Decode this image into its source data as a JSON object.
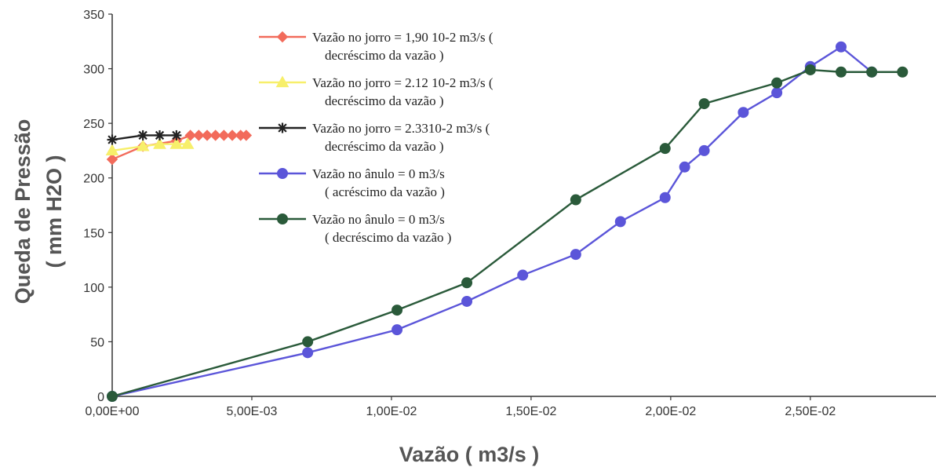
{
  "chart_data": {
    "type": "line",
    "title": "",
    "xlabel": "Vazão ( m3/s )",
    "ylabel": [
      "Queda de Pressão",
      "( mm H2O )"
    ],
    "xlim": [
      0,
      0.0295
    ],
    "ylim": [
      0,
      350
    ],
    "x_ticks": [
      {
        "value": 0,
        "label": "0,00E+00"
      },
      {
        "value": 0.005,
        "label": "5,00E-03"
      },
      {
        "value": 0.01,
        "label": "1,00E-02"
      },
      {
        "value": 0.015,
        "label": "1,50E-02"
      },
      {
        "value": 0.02,
        "label": "2,00E-02"
      },
      {
        "value": 0.025,
        "label": "2,50E-02"
      }
    ],
    "y_ticks": [
      {
        "value": 0,
        "label": "0"
      },
      {
        "value": 50,
        "label": "50"
      },
      {
        "value": 100,
        "label": "100"
      },
      {
        "value": 150,
        "label": "150"
      },
      {
        "value": 200,
        "label": "200"
      },
      {
        "value": 250,
        "label": "250"
      },
      {
        "value": 300,
        "label": "300"
      },
      {
        "value": 350,
        "label": "350"
      }
    ],
    "grid": false,
    "legend_position": "top-center",
    "series": [
      {
        "name": [
          "Vazão no jorro = 1,90 10-2 m3/s (",
          "decréscimo da vazão )"
        ],
        "color": "#f26b5b",
        "marker": "diamond",
        "points": [
          [
            0,
            217
          ],
          [
            0.0011,
            229
          ],
          [
            0.0023,
            234
          ],
          [
            0.0028,
            239
          ],
          [
            0.0031,
            239
          ],
          [
            0.0034,
            239
          ],
          [
            0.0037,
            239
          ],
          [
            0.004,
            239
          ],
          [
            0.0043,
            239
          ],
          [
            0.0046,
            239
          ],
          [
            0.0048,
            239
          ]
        ]
      },
      {
        "name": [
          "Vazão no jorro = 2.12 10-2 m3/s (",
          "decréscimo da vazão )"
        ],
        "color": "#f7ef6a",
        "marker": "triangle",
        "points": [
          [
            0,
            225
          ],
          [
            0.0011,
            229
          ],
          [
            0.0017,
            231
          ],
          [
            0.0023,
            231
          ],
          [
            0.0027,
            231
          ]
        ]
      },
      {
        "name": [
          "Vazão no jorro = 2.3310-2 m3/s (",
          "decréscimo da vazão )"
        ],
        "color": "#222222",
        "marker": "asterisk",
        "points": [
          [
            0,
            235
          ],
          [
            0.0011,
            239
          ],
          [
            0.0017,
            239
          ],
          [
            0.0023,
            239
          ]
        ]
      },
      {
        "name": [
          "Vazão no ânulo = 0 m3/s",
          "( acréscimo da vazão )"
        ],
        "color": "#5b55d9",
        "marker": "circle",
        "points": [
          [
            0,
            0
          ],
          [
            0.007,
            40
          ],
          [
            0.0102,
            61
          ],
          [
            0.0127,
            87
          ],
          [
            0.0147,
            111
          ],
          [
            0.0166,
            130
          ],
          [
            0.0182,
            160
          ],
          [
            0.0198,
            182
          ],
          [
            0.0205,
            210
          ],
          [
            0.0212,
            225
          ],
          [
            0.0226,
            260
          ],
          [
            0.0238,
            278
          ],
          [
            0.025,
            302
          ],
          [
            0.0261,
            320
          ],
          [
            0.0272,
            297
          ]
        ]
      },
      {
        "name": [
          "Vazão no ânulo = 0 m3/s",
          "( decréscimo da vazão )"
        ],
        "color": "#2a5a3a",
        "marker": "circle",
        "points": [
          [
            0,
            0
          ],
          [
            0.007,
            50
          ],
          [
            0.0102,
            79
          ],
          [
            0.0127,
            104
          ],
          [
            0.0166,
            180
          ],
          [
            0.0198,
            227
          ],
          [
            0.0212,
            268
          ],
          [
            0.0238,
            287
          ],
          [
            0.025,
            299
          ],
          [
            0.0261,
            297
          ],
          [
            0.0272,
            297
          ],
          [
            0.0283,
            297
          ]
        ]
      }
    ]
  }
}
